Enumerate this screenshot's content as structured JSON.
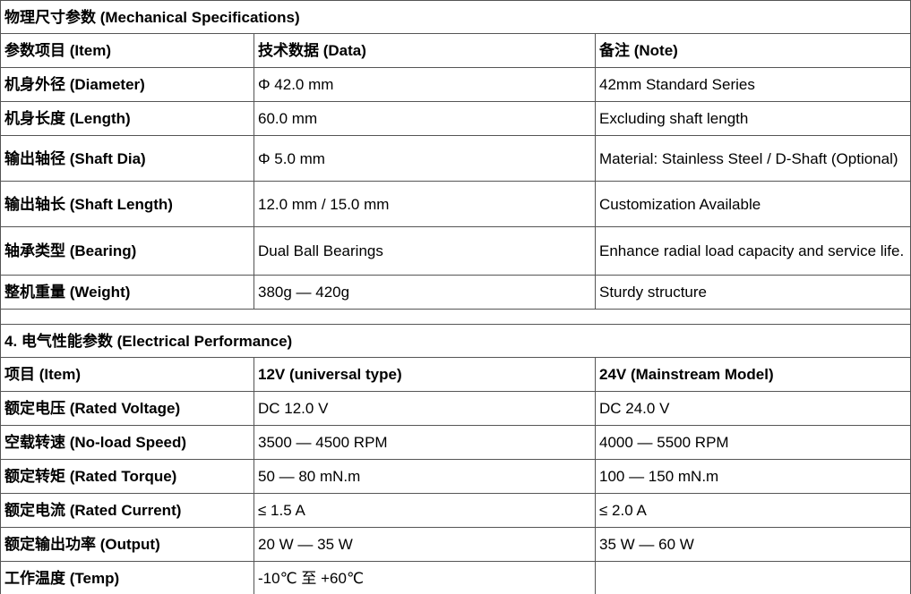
{
  "sections": [
    {
      "title": "物理尺寸参数 (Mechanical Specifications)",
      "header": [
        "参数项目 (Item)",
        "技术数据 (Data)",
        "备注 (Note)"
      ],
      "rows": [
        [
          "机身外径 (Diameter)",
          "Φ 42.0 mm",
          "42mm Standard Series"
        ],
        [
          "机身长度 (Length)",
          "60.0 mm",
          "Excluding shaft length"
        ],
        [
          "输出轴径 (Shaft Dia)",
          "Φ 5.0 mm",
          "Material: Stainless Steel / D-Shaft (Optional)"
        ],
        [
          "输出轴长 (Shaft Length)",
          "12.0 mm / 15.0 mm",
          "Customization Available"
        ],
        [
          "轴承类型 (Bearing)",
          "Dual Ball Bearings",
          "Enhance radial load capacity and service life."
        ],
        [
          "整机重量 (Weight)",
          "380g — 420g",
          "Sturdy structure"
        ]
      ]
    },
    {
      "title": "4. 电气性能参数 (Electrical Performance)",
      "header": [
        "项目 (Item)",
        "12V (universal type)",
        "24V (Mainstream Model)"
      ],
      "rows": [
        [
          "额定电压 (Rated Voltage)",
          "DC 12.0 V",
          "DC 24.0 V"
        ],
        [
          "空载转速 (No-load Speed)",
          "3500 — 4500 RPM",
          "4000 — 5500 RPM"
        ],
        [
          "额定转矩 (Rated Torque)",
          "50 — 80 mN.m",
          "100 — 150 mN.m"
        ],
        [
          "额定电流 (Rated Current)",
          "≤ 1.5 A",
          "≤ 2.0 A"
        ],
        [
          "额定输出功率 (Output)",
          "20 W — 35 W",
          "35 W — 60 W"
        ],
        [
          "工作温度 (Temp)",
          "-10℃ 至 +60℃"
        ]
      ]
    }
  ]
}
